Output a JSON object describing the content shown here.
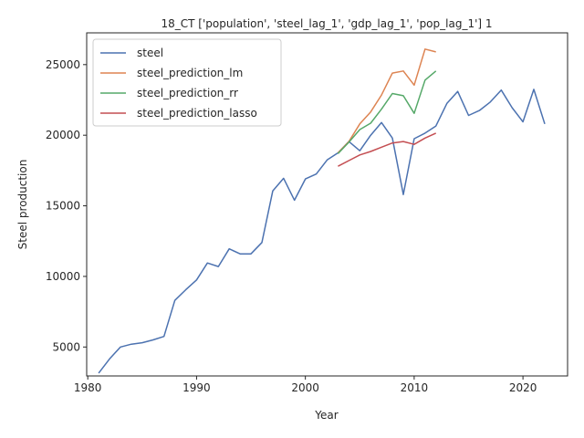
{
  "chart_data": {
    "type": "line",
    "title": "18_CT ['population', 'steel_lag_1', 'gdp_lag_1', 'pop_lag_1'] 1",
    "xlabel": "Year",
    "ylabel": "Steel production",
    "xlim": [
      1979.9,
      2024.1
    ],
    "ylim": [
      2950,
      27250
    ],
    "xticks": [
      1980,
      1990,
      2000,
      2010,
      2020
    ],
    "yticks": [
      5000,
      10000,
      15000,
      20000,
      25000
    ],
    "grid": false,
    "legend_position": "upper-left",
    "series": [
      {
        "name": "steel",
        "color": "#4c72b0",
        "x": [
          1981,
          1982,
          1983,
          1984,
          1985,
          1986,
          1987,
          1988,
          1989,
          1990,
          1991,
          1992,
          1993,
          1994,
          1995,
          1996,
          1997,
          1998,
          1999,
          2000,
          2001,
          2002,
          2003,
          2004,
          2005,
          2006,
          2007,
          2008,
          2009,
          2010,
          2011,
          2012,
          2013,
          2014,
          2015,
          2016,
          2017,
          2018,
          2019,
          2020,
          2021,
          2022
        ],
        "y": [
          3150,
          4150,
          5000,
          5200,
          5300,
          5500,
          5750,
          8300,
          9050,
          9750,
          10950,
          10700,
          11950,
          11600,
          11600,
          12400,
          16050,
          16950,
          15400,
          16900,
          17250,
          18250,
          18750,
          19550,
          18900,
          20000,
          20900,
          19800,
          15800,
          19750,
          20150,
          20650,
          22250,
          23100,
          21400,
          21750,
          22350,
          23200,
          21950,
          20950,
          23250,
          20800
        ]
      },
      {
        "name": "steel_prediction_lm",
        "color": "#dd8452",
        "x": [
          2003,
          2004,
          2005,
          2006,
          2007,
          2008,
          2009,
          2010,
          2011,
          2012
        ],
        "y": [
          18750,
          19550,
          20800,
          21650,
          22850,
          24400,
          24550,
          23550,
          26100,
          25900
        ]
      },
      {
        "name": "steel_prediction_rr",
        "color": "#55a868",
        "x": [
          2003,
          2004,
          2005,
          2006,
          2007,
          2008,
          2009,
          2010,
          2011,
          2012
        ],
        "y": [
          18700,
          19500,
          20400,
          20850,
          21850,
          22950,
          22800,
          21550,
          23900,
          24550
        ]
      },
      {
        "name": "steel_prediction_lasso",
        "color": "#c44e52",
        "x": [
          2003,
          2004,
          2005,
          2006,
          2007,
          2008,
          2009,
          2010,
          2011,
          2012
        ],
        "y": [
          17800,
          18200,
          18600,
          18850,
          19150,
          19450,
          19550,
          19350,
          19800,
          20150
        ]
      }
    ]
  }
}
